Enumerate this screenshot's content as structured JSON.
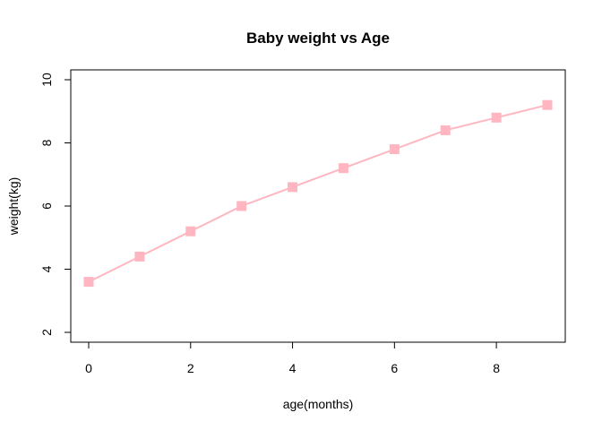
{
  "chart_data": {
    "type": "line",
    "title": "Baby weight vs Age",
    "xlabel": "age(months)",
    "ylabel": "weight(kg)",
    "x": [
      0,
      1,
      2,
      3,
      4,
      5,
      6,
      7,
      8,
      9
    ],
    "series": [
      {
        "values": [
          3.6,
          4.4,
          5.2,
          6.0,
          6.6,
          7.2,
          7.8,
          8.4,
          8.8,
          9.2
        ],
        "color": "#ffb6c1",
        "marker": "square"
      }
    ],
    "xlim": [
      0,
      9
    ],
    "ylim": [
      2,
      10
    ],
    "xticks": [
      0,
      2,
      4,
      6,
      8
    ],
    "yticks": [
      2,
      4,
      6,
      8,
      10
    ],
    "xtick_labels": [
      "0",
      "2",
      "4",
      "6",
      "8"
    ],
    "ytick_labels": [
      "2",
      "4",
      "6",
      "8",
      "10"
    ],
    "grid": false,
    "legend": "none"
  }
}
